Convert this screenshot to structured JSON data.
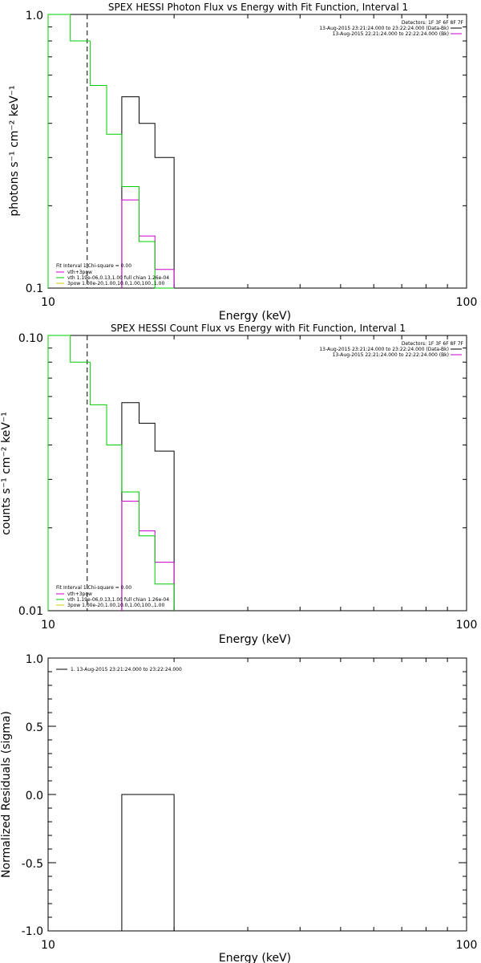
{
  "chart_data": [
    {
      "type": "line",
      "title": "SPEX HESSI Photon Flux vs Energy with Fit Function, Interval 1",
      "xlabel": "Energy (keV)",
      "ylabel": "photons s⁻¹ cm⁻² keV⁻¹",
      "xscale": "log",
      "yscale": "log",
      "xlim": [
        10,
        100
      ],
      "ylim": [
        0.1,
        1.0
      ],
      "x_tick_labels": [
        "10",
        "100"
      ],
      "y_tick_labels": [
        "1.0",
        "0.1"
      ],
      "vline_x": 12.4,
      "header": [
        "Detectors: 1F 3F 6F 8F 7F",
        "13-Aug-2015 23:21:24.000 to 23:22:24.000 (Data-Bk)",
        "13-Aug-2015 22:21:24.000 to 22:22:24.000 (Bk)"
      ],
      "legend": [
        "Fit Interval 1   Chi-square = 0.00",
        "vth+3pow",
        "vth 1.19e-06,0.13,1.00  full chian 1.26e-04",
        "3pow 1.00e-20,1.00,10.0,1.00,100.,1.00"
      ],
      "series": [
        {
          "name": "Data-Bk",
          "color": "#000000",
          "edges": [
            15,
            16.5,
            18,
            20
          ],
          "values": [
            0.5,
            0.4,
            0.3
          ]
        },
        {
          "name": "Bk",
          "color": "#cc00cc",
          "edges": [
            15,
            16.5,
            18,
            20
          ],
          "values": [
            0.21,
            0.155,
            0.117
          ]
        },
        {
          "name": "vth+3pow",
          "color": "#00cc00",
          "edges": [
            10,
            11.3,
            12.6,
            13.8,
            15,
            16.5,
            18,
            20
          ],
          "values": [
            1.0,
            0.8,
            0.55,
            0.365,
            0.235,
            0.148,
            0.1
          ]
        }
      ]
    },
    {
      "type": "line",
      "title": "SPEX HESSI Count Flux vs Energy with Fit Function, Interval 1",
      "xlabel": "Energy (keV)",
      "ylabel": "counts s⁻¹ cm⁻² keV⁻¹",
      "xscale": "log",
      "yscale": "log",
      "xlim": [
        10,
        100
      ],
      "ylim": [
        0.01,
        0.1
      ],
      "x_tick_labels": [
        "10",
        "100"
      ],
      "y_tick_labels": [
        "0.10",
        "0.01"
      ],
      "vline_x": 12.4,
      "header": [
        "Detectors: 1F 3F 6F 8F 7F",
        "13-Aug-2015 23:21:24.000 to 23:22:24.000 (Data-Bk)",
        "13-Aug-2015 22:21:24.000 to 22:22:24.000 (Bk)"
      ],
      "legend": [
        "Fit Interval 1   Chi-square = 0.00",
        "vth+3pow",
        "vth 1.19e-06,0.13,1.00  full chian 1.26e-04",
        "3pow 1.00e-20,1.00,10.0,1.00,100.,1.00"
      ],
      "series": [
        {
          "name": "Data-Bk",
          "color": "#000000",
          "edges": [
            15,
            16.5,
            18,
            20
          ],
          "values": [
            0.057,
            0.048,
            0.038
          ]
        },
        {
          "name": "Bk",
          "color": "#cc00cc",
          "edges": [
            15,
            16.5,
            18,
            20
          ],
          "values": [
            0.025,
            0.0195,
            0.015
          ]
        },
        {
          "name": "vth+3pow",
          "color": "#00cc00",
          "edges": [
            10,
            11.3,
            12.6,
            13.8,
            15,
            16.5,
            18,
            20
          ],
          "values": [
            0.1,
            0.08,
            0.056,
            0.04,
            0.027,
            0.0187,
            0.0125
          ]
        }
      ]
    },
    {
      "type": "line",
      "title": "",
      "xlabel": "Energy (keV)",
      "ylabel": "Normalized Residuals (sigma)",
      "xscale": "log",
      "yscale": "linear",
      "xlim": [
        10,
        100
      ],
      "ylim": [
        -1.0,
        1.0
      ],
      "x_tick_labels": [
        "10",
        "100"
      ],
      "y_ticks": [
        1.0,
        0.5,
        0.0,
        -0.5,
        -1.0
      ],
      "y_tick_labels": [
        "1.0",
        "0.5",
        "0.0",
        "-0.5",
        "-1.0"
      ],
      "legend": [
        "1. 13-Aug-2015 23:21:24.000 to 23:22:24.000"
      ],
      "series": [
        {
          "name": "1. 13-Aug-2015 23:21:24.000 to 23:22:24.000",
          "color": "#000000",
          "edges": [
            15,
            20
          ],
          "values": [
            0.0
          ]
        }
      ]
    }
  ]
}
